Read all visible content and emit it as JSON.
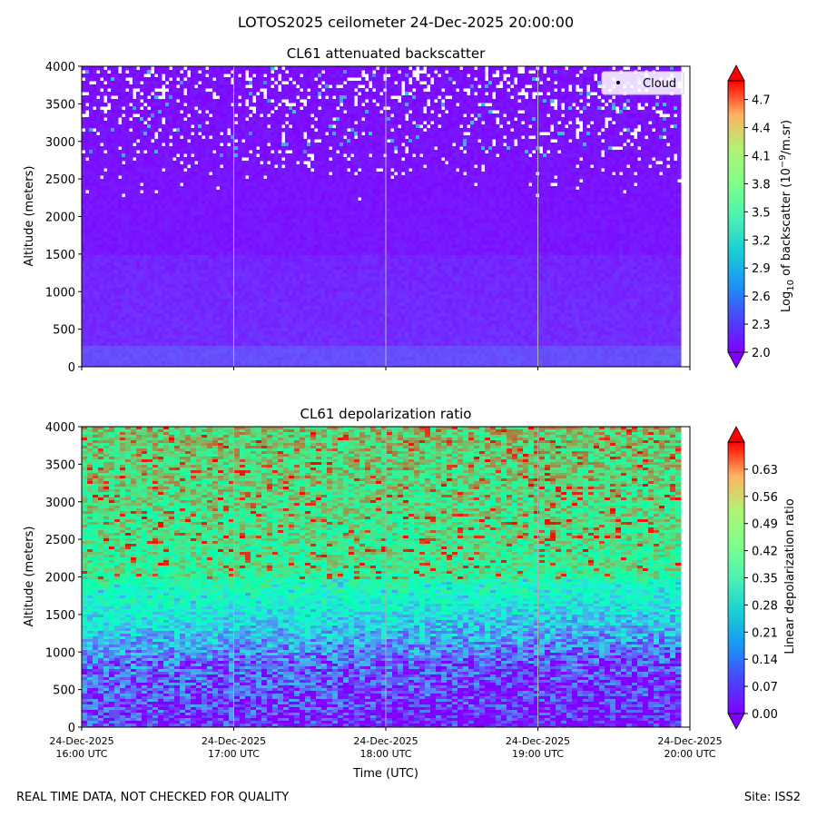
{
  "suptitle": "LOTOS2025 ceilometer 24-Dec-2025 20:00:00",
  "footer": {
    "left": "REAL TIME DATA, NOT CHECKED FOR QUALITY",
    "right": "Site: ISS2"
  },
  "xaxis": {
    "label": "Time (UTC)",
    "ticks": [
      {
        "date": "24-Dec-2025",
        "time": "16:00 UTC"
      },
      {
        "date": "24-Dec-2025",
        "time": "17:00 UTC"
      },
      {
        "date": "24-Dec-2025",
        "time": "18:00 UTC"
      },
      {
        "date": "24-Dec-2025",
        "time": "19:00 UTC"
      },
      {
        "date": "24-Dec-2025",
        "time": "20:00 UTC"
      }
    ]
  },
  "chart_data": [
    {
      "type": "heatmap",
      "title": "CL61 attenuated backscatter",
      "xlabel": "",
      "ylabel": "Altitude (meters)",
      "xlim_hours": [
        16,
        20
      ],
      "ylim": [
        0,
        4000
      ],
      "yticks": [
        "0",
        "500",
        "1000",
        "1500",
        "2000",
        "2500",
        "3000",
        "3500",
        "4000"
      ],
      "colorbar": {
        "label_main": "Log",
        "label_sub": "10",
        "label_rest": " of backscatter (10",
        "label_sup": "−9",
        "label_end": "/m.sr)",
        "range": [
          2.0,
          4.9
        ],
        "ticks": [
          "2.0",
          "2.3",
          "2.6",
          "2.9",
          "3.2",
          "3.5",
          "3.8",
          "4.1",
          "4.4",
          "4.7"
        ],
        "colormap": "rainbow"
      },
      "legend": {
        "entries": [
          "Cloud"
        ],
        "placement": "top-right"
      },
      "description_values": {
        "near_surface": 2.2,
        "mid_level": 2.1,
        "upper_level": 2.05
      }
    },
    {
      "type": "heatmap",
      "title": "CL61 depolarization ratio",
      "xlabel": "Time (UTC)",
      "ylabel": "Altitude (meters)",
      "xlim_hours": [
        16,
        20
      ],
      "ylim": [
        0,
        4000
      ],
      "yticks": [
        "0",
        "500",
        "1000",
        "1500",
        "2000",
        "2500",
        "3000",
        "3500",
        "4000"
      ],
      "colorbar": {
        "label": "Linear depolarization ratio",
        "range": [
          0.0,
          0.7
        ],
        "ticks": [
          "0.00",
          "0.07",
          "0.14",
          "0.21",
          "0.28",
          "0.35",
          "0.42",
          "0.49",
          "0.56",
          "0.63"
        ],
        "colormap": "rainbow"
      },
      "description_values": {
        "below_1000m": 0.08,
        "around_1500m": 0.25,
        "above_2500m": 0.5
      }
    }
  ],
  "colors": {
    "axis": "#000000",
    "grid": "#b0b0b0",
    "nodata": "#ffffff"
  }
}
